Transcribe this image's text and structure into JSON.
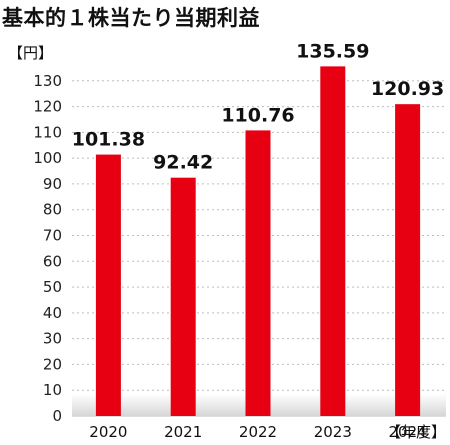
{
  "chart_data": {
    "type": "bar",
    "title": "基本的１株当たり当期利益",
    "ylabel": "【円】",
    "xlabel": "【年度】",
    "categories": [
      "2020",
      "2021",
      "2022",
      "2023",
      "2024"
    ],
    "values": [
      101.38,
      92.42,
      110.76,
      135.59,
      120.93
    ],
    "value_labels": [
      "101.38",
      "92.42",
      "110.76",
      "135.59",
      "120.93"
    ],
    "ylim": [
      0,
      140
    ],
    "yticks": [
      0,
      10,
      20,
      30,
      40,
      50,
      60,
      70,
      80,
      90,
      100,
      110,
      120,
      130
    ],
    "grid": true,
    "bar_color": "#e60012",
    "grid_color": "#bdbdbd"
  }
}
